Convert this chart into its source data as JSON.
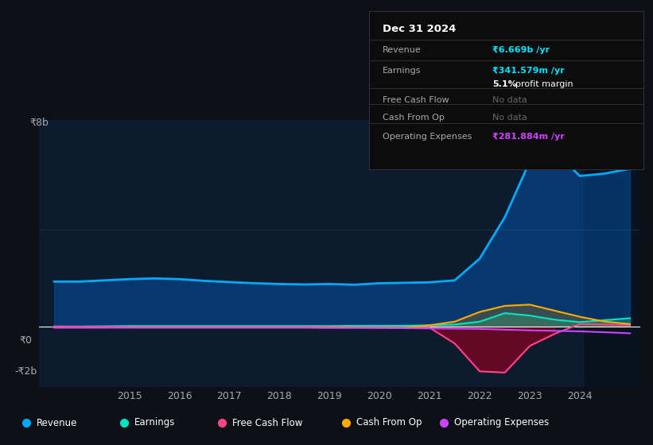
{
  "bg_color": "#0d1117",
  "chart_bg": "#0d1b2e",
  "title": "Dec 31 2024",
  "ylabel_top": "₹8b",
  "ylabel_mid": "₹0",
  "ylabel_bot": "-₹2b",
  "x_labels": [
    "2015",
    "2016",
    "2017",
    "2018",
    "2019",
    "2020",
    "2021",
    "2022",
    "2023",
    "2024"
  ],
  "legend": [
    {
      "label": "Revenue",
      "color": "#00aaff"
    },
    {
      "label": "Earnings",
      "color": "#00e5c0"
    },
    {
      "label": "Free Cash Flow",
      "color": "#ff4488"
    },
    {
      "label": "Cash From Op",
      "color": "#ffaa00"
    },
    {
      "label": "Operating Expenses",
      "color": "#cc44ff"
    }
  ],
  "x_data": [
    2013.5,
    2014.0,
    2014.5,
    2015.0,
    2015.5,
    2016.0,
    2016.5,
    2017.0,
    2017.5,
    2018.0,
    2018.5,
    2019.0,
    2019.5,
    2020.0,
    2020.5,
    2021.0,
    2021.5,
    2022.0,
    2022.5,
    2023.0,
    2023.5,
    2024.0,
    2024.5,
    2025.0
  ],
  "rev_pts": [
    1.85,
    1.85,
    1.9,
    1.95,
    1.98,
    1.95,
    1.88,
    1.83,
    1.78,
    1.75,
    1.73,
    1.75,
    1.72,
    1.78,
    1.8,
    1.82,
    1.9,
    2.8,
    4.5,
    6.8,
    7.2,
    6.2,
    6.3,
    6.5
  ],
  "earn_pts": [
    0.0,
    0.0,
    0.01,
    0.02,
    0.02,
    0.02,
    0.02,
    0.02,
    0.02,
    0.02,
    0.02,
    0.02,
    0.03,
    0.03,
    0.03,
    0.05,
    0.08,
    0.2,
    0.55,
    0.45,
    0.28,
    0.18,
    0.26,
    0.34
  ],
  "fcf_pts": [
    0.0,
    -0.01,
    -0.01,
    -0.02,
    -0.02,
    -0.02,
    -0.02,
    -0.02,
    -0.02,
    -0.02,
    -0.02,
    -0.02,
    -0.03,
    -0.03,
    -0.04,
    -0.05,
    -0.7,
    -1.85,
    -1.9,
    -0.8,
    -0.3,
    0.1,
    0.08,
    0.05
  ],
  "cop_pts": [
    -0.04,
    -0.04,
    -0.04,
    -0.04,
    -0.04,
    -0.04,
    -0.04,
    -0.04,
    -0.04,
    -0.04,
    -0.04,
    -0.04,
    -0.04,
    -0.05,
    -0.05,
    0.05,
    0.2,
    0.6,
    0.85,
    0.9,
    0.65,
    0.4,
    0.2,
    0.1
  ],
  "opex_pts": [
    -0.05,
    -0.05,
    -0.05,
    -0.05,
    -0.05,
    -0.05,
    -0.05,
    -0.05,
    -0.05,
    -0.05,
    -0.05,
    -0.06,
    -0.06,
    -0.06,
    -0.07,
    -0.08,
    -0.09,
    -0.1,
    -0.13,
    -0.16,
    -0.18,
    -0.2,
    -0.24,
    -0.28
  ]
}
